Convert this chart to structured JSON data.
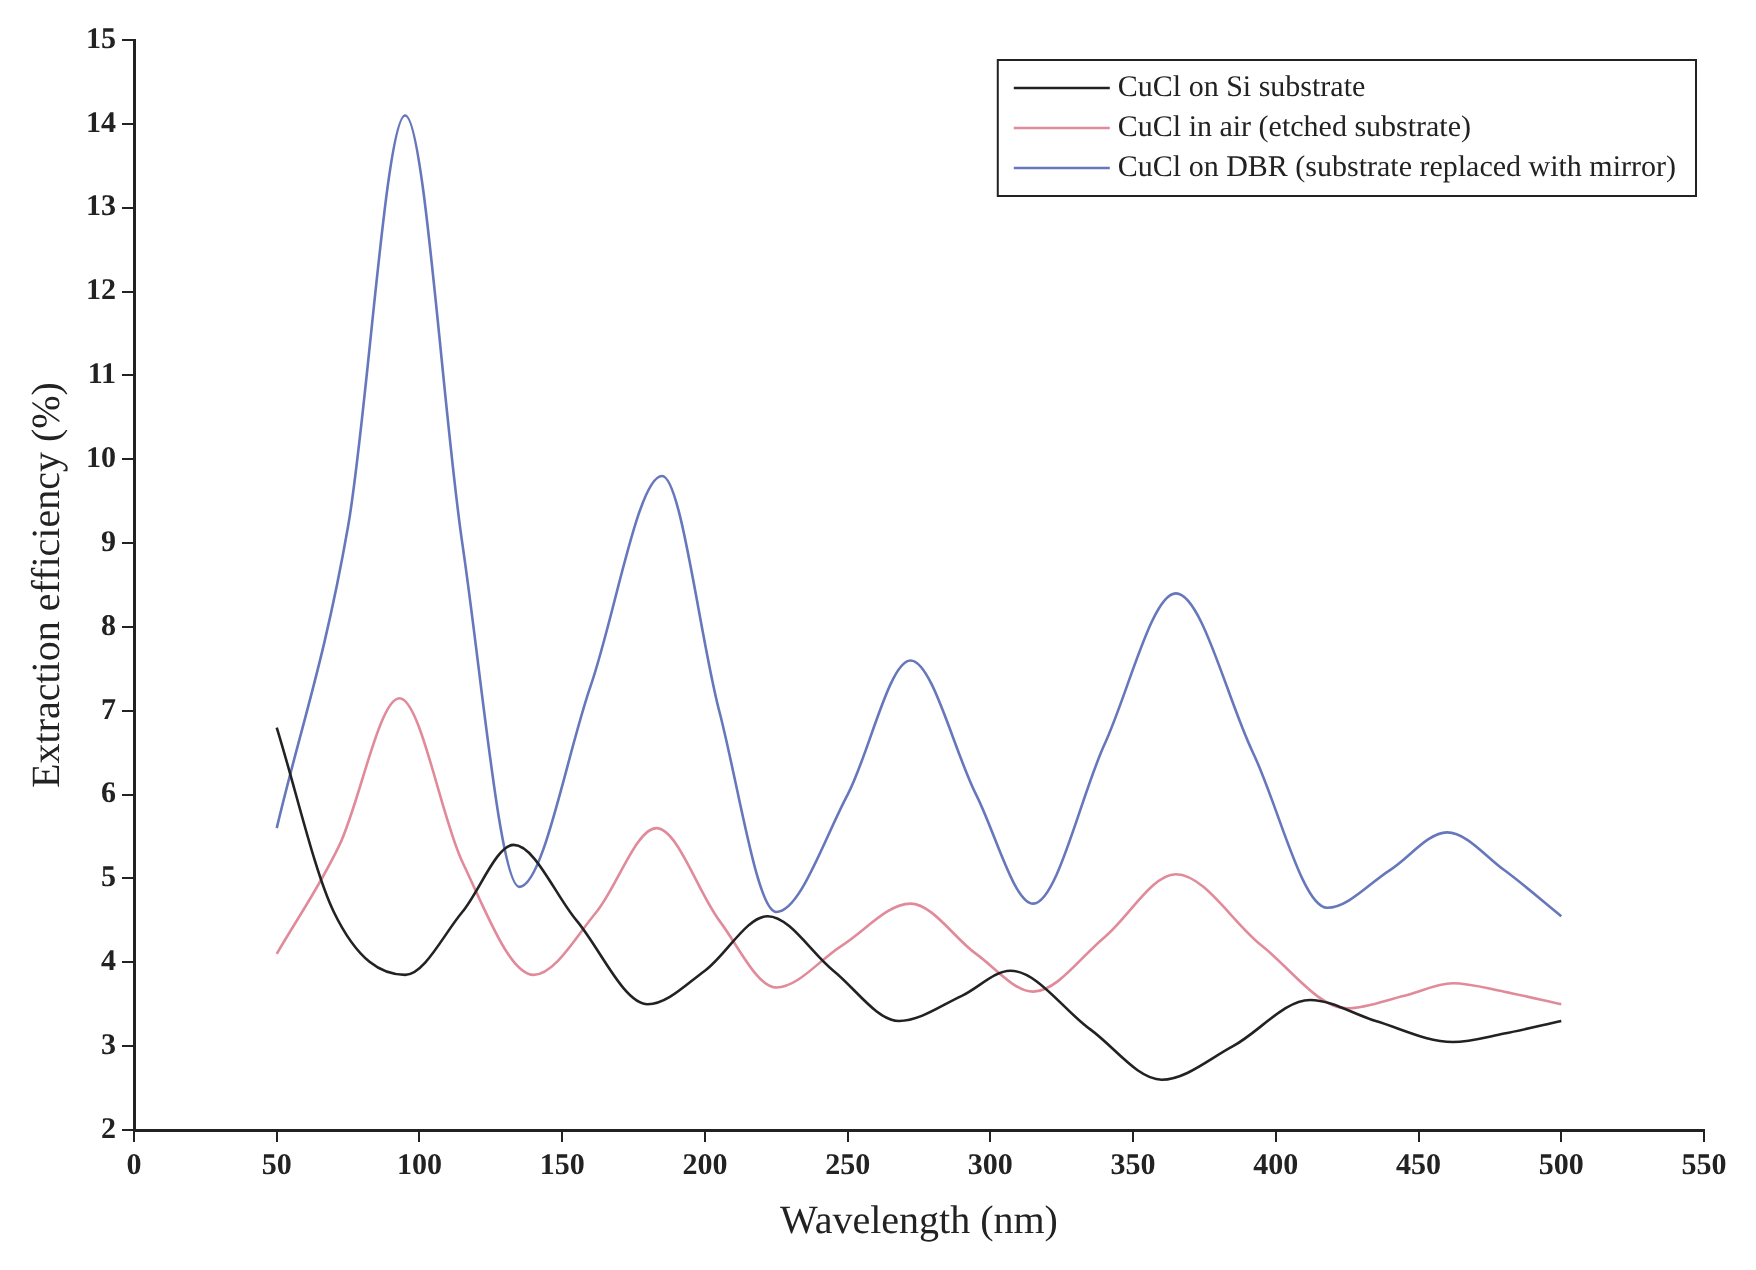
{
  "chart_data": {
    "type": "line",
    "xlabel": "Wavelength (nm)",
    "ylabel": "Extraction efficiency (%)",
    "xlim": [
      0,
      550
    ],
    "xticks": [
      0,
      50,
      100,
      150,
      200,
      250,
      300,
      350,
      400,
      450,
      500,
      550
    ],
    "ylim": [
      2,
      15
    ],
    "yticks": [
      2,
      3,
      4,
      5,
      6,
      7,
      8,
      9,
      10,
      11,
      12,
      13,
      14,
      15
    ],
    "grid": false,
    "legend": "top right",
    "marker": "none",
    "line_style": "solid",
    "series": [
      {
        "name": "CuCl on Si substrate",
        "color": "#222222",
        "x": [
          50,
          70,
          95,
          115,
          133,
          155,
          180,
          200,
          222,
          245,
          268,
          290,
          307,
          335,
          360,
          385,
          412,
          435,
          462,
          480,
          500
        ],
        "values": [
          6.8,
          4.6,
          3.85,
          4.6,
          5.4,
          4.5,
          3.5,
          3.9,
          4.55,
          3.9,
          3.3,
          3.6,
          3.9,
          3.2,
          2.6,
          3.0,
          3.55,
          3.3,
          3.05,
          3.15,
          3.3
        ]
      },
      {
        "name": "CuCl in air (etched substrate)",
        "color": "#e08a9a",
        "x": [
          50,
          72,
          93,
          115,
          140,
          162,
          183,
          205,
          225,
          248,
          272,
          295,
          315,
          340,
          365,
          395,
          425,
          445,
          462,
          480,
          500
        ],
        "values": [
          4.1,
          5.4,
          7.15,
          5.2,
          3.85,
          4.6,
          5.6,
          4.5,
          3.7,
          4.2,
          4.7,
          4.1,
          3.65,
          4.3,
          5.05,
          4.2,
          3.45,
          3.6,
          3.75,
          3.65,
          3.5
        ]
      },
      {
        "name": "CuCl on DBR (substrate replaced with mirror)",
        "color": "#6677bb",
        "x": [
          50,
          75,
          95,
          115,
          135,
          160,
          185,
          205,
          225,
          250,
          272,
          295,
          315,
          340,
          365,
          392,
          418,
          440,
          460,
          480,
          500
        ],
        "values": [
          5.6,
          9.2,
          14.1,
          9.0,
          4.9,
          7.3,
          9.8,
          7.0,
          4.6,
          6.0,
          7.6,
          6.0,
          4.7,
          6.6,
          8.4,
          6.5,
          4.65,
          5.1,
          5.55,
          5.1,
          4.55
        ]
      }
    ]
  }
}
